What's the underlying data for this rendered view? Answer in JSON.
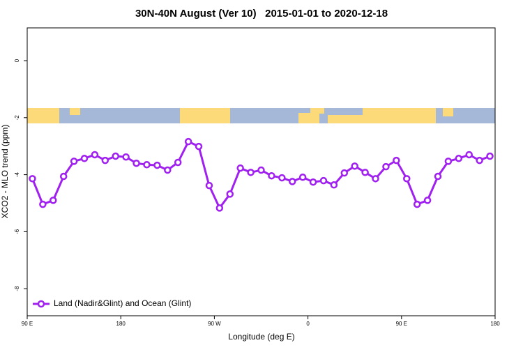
{
  "chart_data": {
    "type": "line",
    "title": "30N-40N August (Ver 10)   2015-01-01 to 2020-12-18",
    "x_label": "Longitude (deg E)",
    "y_label": "XCO2 - MLO trend (ppm)",
    "x": [
      95,
      105,
      115,
      125,
      135,
      145,
      155,
      165,
      175,
      185,
      195,
      205,
      215,
      225,
      235,
      245,
      255,
      265,
      275,
      285,
      295,
      305,
      315,
      325,
      335,
      345,
      355,
      365,
      375,
      385,
      395,
      405,
      415,
      425,
      435,
      445,
      455,
      465,
      475,
      485,
      495,
      505,
      515,
      525,
      535
    ],
    "series": [
      {
        "name": "Land (Nadir&Glint) and Ocean (Glint)",
        "color": "#a020f0",
        "values": [
          -4.14,
          -5.04,
          -4.9,
          -4.06,
          -3.53,
          -3.43,
          -3.3,
          -3.5,
          -3.35,
          -3.38,
          -3.6,
          -3.65,
          -3.67,
          -3.84,
          -3.57,
          -2.84,
          -3.01,
          -4.38,
          -5.17,
          -4.68,
          -3.77,
          -3.92,
          -3.84,
          -4.04,
          -4.11,
          -4.24,
          -4.09,
          -4.26,
          -4.21,
          -4.36,
          -3.94,
          -3.7,
          -3.92,
          -4.14,
          -3.72,
          -3.5,
          -4.14,
          -5.04,
          -4.9,
          -4.06,
          -3.53,
          -3.43,
          -3.3,
          -3.5,
          -3.35
        ]
      }
    ],
    "xlim": [
      90,
      540
    ],
    "xticks": [
      {
        "value": 90,
        "label": "90 E"
      },
      180,
      {
        "value": 270,
        "label": "90 W"
      },
      {
        "value": 360,
        "label": "0"
      },
      {
        "value": 450,
        "label": "90 E"
      },
      {
        "value": 540,
        "label": "180"
      }
    ],
    "ylim": [
      -8.95,
      1.15
    ],
    "yticks": [
      0,
      -2,
      -4,
      -6,
      -8
    ],
    "legend": "lower-left"
  }
}
